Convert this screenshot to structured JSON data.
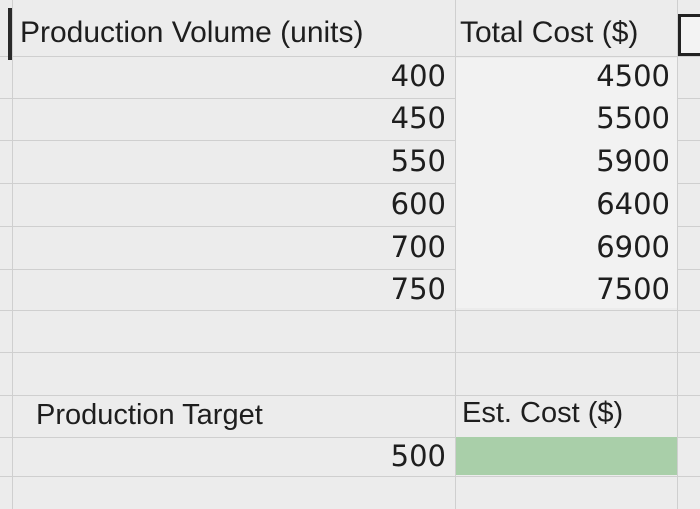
{
  "sheet": {
    "header": {
      "col_a": "Production Volume (units)",
      "col_b": "Total Cost ($)"
    },
    "rows": [
      {
        "volume": "400",
        "cost": "4500"
      },
      {
        "volume": "450",
        "cost": "5500"
      },
      {
        "volume": "550",
        "cost": "5900"
      },
      {
        "volume": "600",
        "cost": "6400"
      },
      {
        "volume": "700",
        "cost": "6900"
      },
      {
        "volume": "750",
        "cost": "7500"
      }
    ],
    "target_label": "Production Target",
    "est_cost_label": "Est. Cost ($)",
    "target_value": "500",
    "est_cost_value": ""
  },
  "colors": {
    "est_cost_fill": "#a9cfa9",
    "grid_line": "#cfcfcf",
    "background": "#ececec"
  }
}
